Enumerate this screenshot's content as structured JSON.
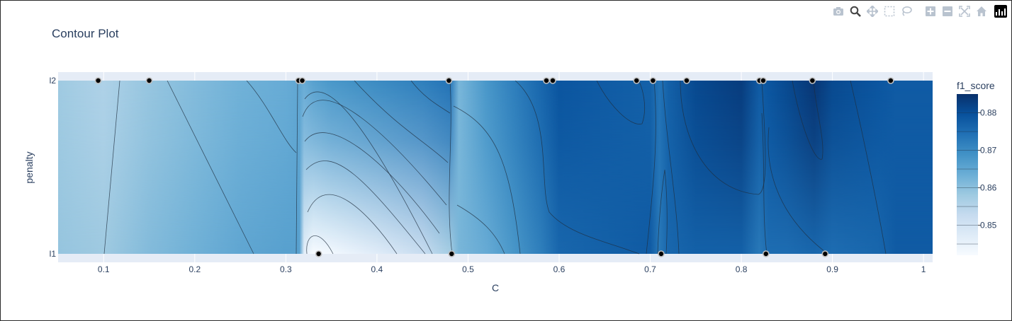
{
  "title": "Contour Plot",
  "toolbar": [
    {
      "name": "camera-icon",
      "label": "Download plot as a png"
    },
    {
      "name": "zoom-icon",
      "label": "Zoom"
    },
    {
      "name": "pan-icon",
      "label": "Pan"
    },
    {
      "name": "box-select-icon",
      "label": "Box Select"
    },
    {
      "name": "lasso-select-icon",
      "label": "Lasso Select"
    },
    {
      "name": "zoom-in-icon",
      "label": "Zoom in"
    },
    {
      "name": "zoom-out-icon",
      "label": "Zoom out"
    },
    {
      "name": "autoscale-icon",
      "label": "Autoscale"
    },
    {
      "name": "home-icon",
      "label": "Reset axes"
    },
    {
      "name": "plotly-logo-icon",
      "label": "Produced with Plotly"
    }
  ],
  "chart_data": {
    "type": "contour",
    "xlabel": "C",
    "ylabel": "penalty",
    "xlim": [
      0.05,
      1.01
    ],
    "xticks": [
      0.1,
      0.2,
      0.3,
      0.4,
      0.5,
      0.6,
      0.7,
      0.8,
      0.9,
      1
    ],
    "xtick_labels": [
      "0.1",
      "0.2",
      "0.3",
      "0.4",
      "0.5",
      "0.6",
      "0.7",
      "0.8",
      "0.9",
      "1"
    ],
    "y_categories": [
      "l1",
      "l2"
    ],
    "colorbar": {
      "title": "f1_score",
      "min": 0.842,
      "max": 0.885,
      "ticks": [
        0.85,
        0.86,
        0.87,
        0.88
      ],
      "tick_labels": [
        "0.85",
        "0.86",
        "0.87",
        "0.88"
      ],
      "colorscale": [
        "#f7fbff",
        "#deebf7",
        "#c6dbef",
        "#9ecae1",
        "#6baed6",
        "#4292c6",
        "#2171b5",
        "#08519c",
        "#08306b"
      ]
    },
    "profiles": {
      "x": [
        0.05,
        0.1,
        0.15,
        0.2,
        0.25,
        0.3,
        0.315,
        0.32,
        0.33,
        0.35,
        0.4,
        0.45,
        0.48,
        0.49,
        0.52,
        0.55,
        0.58,
        0.6,
        0.65,
        0.7,
        0.71,
        0.72,
        0.75,
        0.8,
        0.82,
        0.83,
        0.85,
        0.88,
        0.9,
        0.95,
        0.97,
        1.01
      ],
      "z_l2": [
        0.858,
        0.856,
        0.859,
        0.861,
        0.863,
        0.864,
        0.865,
        0.864,
        0.866,
        0.868,
        0.87,
        0.872,
        0.874,
        0.862,
        0.868,
        0.872,
        0.876,
        0.879,
        0.878,
        0.877,
        0.874,
        0.877,
        0.881,
        0.883,
        0.878,
        0.879,
        0.881,
        0.884,
        0.881,
        0.879,
        0.878,
        0.878
      ],
      "z_l1": [
        0.859,
        0.858,
        0.861,
        0.863,
        0.865,
        0.866,
        0.866,
        0.846,
        0.842,
        0.843,
        0.847,
        0.852,
        0.857,
        0.862,
        0.864,
        0.868,
        0.872,
        0.876,
        0.877,
        0.878,
        0.873,
        0.876,
        0.877,
        0.877,
        0.873,
        0.875,
        0.875,
        0.876,
        0.875,
        0.876,
        0.878,
        0.878
      ]
    },
    "trials": [
      {
        "C": 0.094,
        "penalty": "l2"
      },
      {
        "C": 0.15,
        "penalty": "l2"
      },
      {
        "C": 0.314,
        "penalty": "l2"
      },
      {
        "C": 0.318,
        "penalty": "l2"
      },
      {
        "C": 0.336,
        "penalty": "l1"
      },
      {
        "C": 0.479,
        "penalty": "l2"
      },
      {
        "C": 0.482,
        "penalty": "l1"
      },
      {
        "C": 0.586,
        "penalty": "l2"
      },
      {
        "C": 0.593,
        "penalty": "l2"
      },
      {
        "C": 0.685,
        "penalty": "l2"
      },
      {
        "C": 0.703,
        "penalty": "l2"
      },
      {
        "C": 0.712,
        "penalty": "l1"
      },
      {
        "C": 0.74,
        "penalty": "l2"
      },
      {
        "C": 0.82,
        "penalty": "l2"
      },
      {
        "C": 0.824,
        "penalty": "l2"
      },
      {
        "C": 0.827,
        "penalty": "l1"
      },
      {
        "C": 0.878,
        "penalty": "l2"
      },
      {
        "C": 0.892,
        "penalty": "l1"
      },
      {
        "C": 0.964,
        "penalty": "l2"
      }
    ]
  }
}
